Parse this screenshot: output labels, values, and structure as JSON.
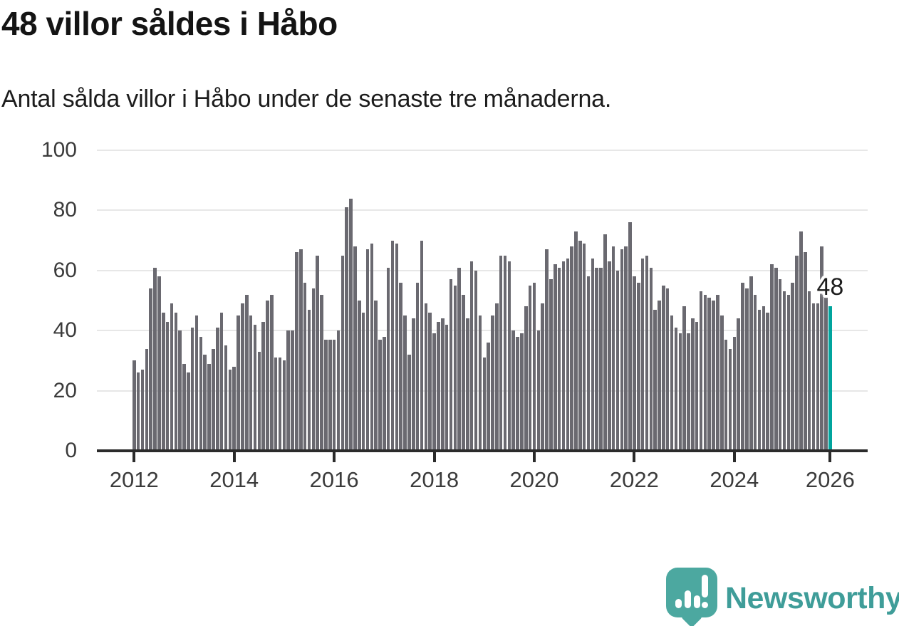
{
  "header": {
    "title": "48 villor såldes i Håbo",
    "subtitle": "Antal sålda villor i Håbo under de senaste tre månaderna."
  },
  "chart_data": {
    "type": "bar",
    "title": "48 villor såldes i Håbo",
    "subtitle": "Antal sålda villor i Håbo under de senaste tre månaderna.",
    "x_period": "monthly 2012-01 to 2025-12",
    "categories_note": "rolling 3-month number of houses sold, one bar per month",
    "x_tick_labels": [
      "2012",
      "2014",
      "2016",
      "2018",
      "2020",
      "2022",
      "2024",
      "2026"
    ],
    "y_tick_labels": [
      0,
      20,
      40,
      60,
      80,
      100
    ],
    "ylim": [
      0,
      100
    ],
    "grid": "horizontal",
    "bar_color": "#6a6970",
    "highlight_color": "#00a49d",
    "annotation": {
      "text": "48",
      "applies_to": "last bar"
    },
    "series": [
      {
        "name": "Antal sålda villor (3 månader)",
        "values": [
          30,
          26,
          27,
          34,
          54,
          61,
          58,
          46,
          43,
          49,
          46,
          40,
          29,
          26,
          41,
          45,
          38,
          32,
          29,
          34,
          41,
          46,
          35,
          27,
          28,
          45,
          49,
          52,
          45,
          42,
          33,
          43,
          50,
          52,
          31,
          31,
          30,
          40,
          40,
          66,
          67,
          56,
          47,
          54,
          65,
          52,
          37,
          37,
          37,
          40,
          65,
          81,
          84,
          68,
          50,
          46,
          67,
          69,
          50,
          37,
          38,
          61,
          70,
          69,
          56,
          45,
          32,
          44,
          56,
          70,
          49,
          46,
          39,
          43,
          44,
          42,
          57,
          55,
          61,
          52,
          44,
          63,
          60,
          45,
          31,
          36,
          45,
          49,
          65,
          65,
          63,
          40,
          38,
          39,
          48,
          55,
          56,
          40,
          49,
          67,
          57,
          62,
          61,
          63,
          64,
          68,
          73,
          70,
          69,
          58,
          64,
          61,
          61,
          72,
          63,
          68,
          60,
          67,
          68,
          76,
          58,
          56,
          64,
          65,
          61,
          47,
          50,
          55,
          54,
          45,
          41,
          39,
          48,
          39,
          44,
          43,
          53,
          52,
          51,
          50,
          52,
          45,
          37,
          34,
          38,
          44,
          56,
          54,
          58,
          52,
          47,
          48,
          46,
          62,
          61,
          57,
          53,
          52,
          56,
          65,
          73,
          66,
          53,
          49,
          49,
          68,
          51,
          48
        ]
      }
    ],
    "last_value": 48,
    "start_year": 2012
  },
  "footer": {
    "brand": "Newsworthy",
    "logo_icon": "speech-bubble-bar-chart-icon"
  },
  "colors": {
    "bar": "#6a6970",
    "highlight": "#00a49d",
    "gridline": "#e7e7e7",
    "axis": "#2b2b2b",
    "tick_label": "#3b3b3b",
    "logo": "#4ca8a0",
    "brand_text": "#3f9d99"
  }
}
